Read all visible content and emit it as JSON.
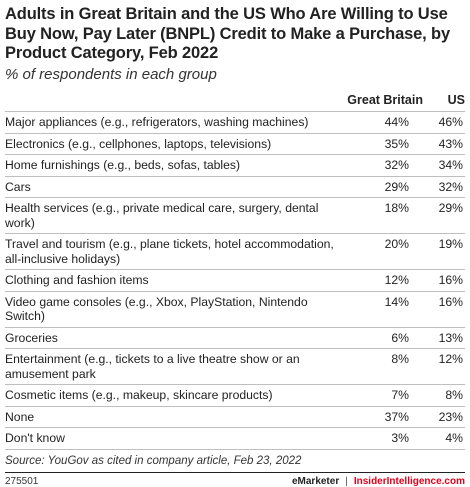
{
  "chart_data": {
    "type": "table",
    "title": "Adults in Great Britain and the US Who Are Willing to Use Buy Now, Pay Later (BNPL) Credit to Make a Purchase, by Product Category, Feb 2022",
    "subtitle": "% of respondents in each group",
    "columns": [
      "",
      "Great Britain",
      "US"
    ],
    "rows": [
      {
        "category": "Major appliances (e.g., refrigerators, washing machines)",
        "great_britain": "44%",
        "us": "46%"
      },
      {
        "category": "Electronics (e.g., cellphones, laptops, televisions)",
        "great_britain": "35%",
        "us": "43%"
      },
      {
        "category": "Home furnishings (e.g., beds, sofas, tables)",
        "great_britain": "32%",
        "us": "34%"
      },
      {
        "category": "Cars",
        "great_britain": "29%",
        "us": "32%"
      },
      {
        "category": "Health services (e.g., private medical care, surgery, dental work)",
        "great_britain": "18%",
        "us": "29%"
      },
      {
        "category": "Travel and tourism (e.g., plane tickets, hotel accommodation, all-inclusive holidays)",
        "great_britain": "20%",
        "us": "19%"
      },
      {
        "category": "Clothing and fashion items",
        "great_britain": "12%",
        "us": "16%"
      },
      {
        "category": "Video game consoles (e.g., Xbox, PlayStation, Nintendo Switch)",
        "great_britain": "14%",
        "us": "16%"
      },
      {
        "category": "Groceries",
        "great_britain": "6%",
        "us": "13%"
      },
      {
        "category": "Entertainment (e.g., tickets to a live theatre show or an amusement park",
        "great_britain": "8%",
        "us": "12%"
      },
      {
        "category": "Cosmetic items (e.g., makeup, skincare products)",
        "great_britain": "7%",
        "us": "8%"
      },
      {
        "category": "None",
        "great_britain": "37%",
        "us": "23%"
      },
      {
        "category": "Don't know",
        "great_britain": "3%",
        "us": "4%"
      }
    ],
    "source": "Source: YouGov as cited in company article, Feb 23, 2022"
  },
  "footer": {
    "chart_id": "275501",
    "brand_left": "eMarketer",
    "separator": "|",
    "brand_right": "InsiderIntelligence.com"
  },
  "colors": {
    "text": "#222222",
    "rule": "#bfbfbf",
    "brand_accent": "#e2001a"
  }
}
